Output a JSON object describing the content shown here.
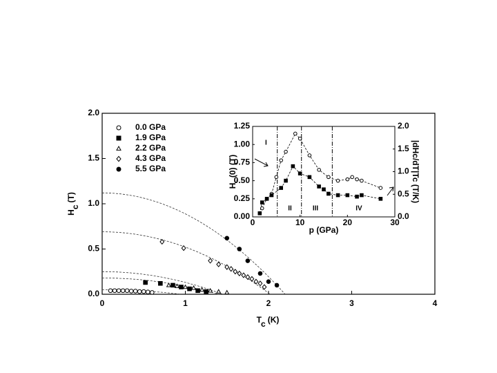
{
  "chart_data": [
    {
      "type": "scatter",
      "ylabel": {
        "main": "H",
        "sub": "c",
        "unit": "(T)"
      },
      "xlabel": {
        "main": "T",
        "sub": "c",
        "unit": "(K)"
      },
      "xlim": [
        0,
        4
      ],
      "xticks": [
        0,
        1,
        2,
        3,
        4
      ],
      "ylim": [
        0,
        2
      ],
      "yticks": [
        {
          "value": 0,
          "label": "0.0"
        },
        {
          "value": 0.5,
          "label": "0.5"
        },
        {
          "value": 1,
          "label": "1.0"
        },
        {
          "value": 1.5,
          "label": "1.5"
        },
        {
          "value": 2,
          "label": "2.0"
        }
      ],
      "series": [
        {
          "name": "0.0 GPa",
          "marker": "circle-open",
          "color": "#000000",
          "x": [
            0.1,
            0.15,
            0.2,
            0.25,
            0.3,
            0.35,
            0.4,
            0.45,
            0.5,
            0.55,
            0.6
          ],
          "values": [
            0.04,
            0.04,
            0.04,
            0.04,
            0.04,
            0.035,
            0.035,
            0.03,
            0.03,
            0.025,
            0.02
          ],
          "fit": {
            "h0": 0.05,
            "tc": 0.95
          }
        },
        {
          "name": "1.9 GPa",
          "marker": "square-filled",
          "color": "#000000",
          "x": [
            0.52,
            0.7,
            0.85,
            0.95,
            1.05,
            1.15,
            1.25
          ],
          "values": [
            0.13,
            0.12,
            0.1,
            0.08,
            0.06,
            0.04,
            0.03
          ],
          "fit": {
            "h0": 0.18,
            "tc": 1.4
          }
        },
        {
          "name": "2.2 GPa",
          "marker": "triangle-open",
          "color": "#000000",
          "x": [
            0.8,
            0.9,
            1.0,
            1.1,
            1.2,
            1.3,
            1.4,
            1.5
          ],
          "values": [
            0.1,
            0.09,
            0.08,
            0.07,
            0.05,
            0.04,
            0.03,
            0.02
          ],
          "fit": {
            "h0": 0.25,
            "tc": 1.45
          }
        },
        {
          "name": "4.3 GPa",
          "marker": "diamond-open",
          "color": "#000000",
          "x": [
            0.72,
            0.98,
            1.3,
            1.4,
            1.5,
            1.55,
            1.6,
            1.65,
            1.7,
            1.75,
            1.8,
            1.85,
            1.9,
            1.95
          ],
          "values": [
            0.58,
            0.51,
            0.37,
            0.33,
            0.3,
            0.28,
            0.25,
            0.23,
            0.21,
            0.19,
            0.17,
            0.14,
            0.12,
            0.08
          ],
          "fit": {
            "h0": 0.69,
            "tc": 2.02
          }
        },
        {
          "name": "5.5 GPa",
          "marker": "circle-filled",
          "color": "#000000",
          "x": [
            1.5,
            1.65,
            1.75,
            1.9,
            2.0,
            2.1
          ],
          "values": [
            0.62,
            0.5,
            0.37,
            0.23,
            0.14,
            0.1
          ],
          "fit": {
            "h0": 1.12,
            "tc": 2.2
          }
        }
      ]
    },
    {
      "type": "line",
      "xlabel": "p (GPa)",
      "ylabel": {
        "main": "H",
        "sub": "c",
        "unit": "(0) (T)"
      },
      "y2label": "|dHc/dT|Tc (T/K)",
      "xlim": [
        0,
        30
      ],
      "xticks": [
        0,
        10,
        20,
        30
      ],
      "ylim": [
        0,
        1.25
      ],
      "yticks": [
        {
          "value": 0,
          "label": "0.00"
        },
        {
          "value": 0.25,
          "label": "0.25"
        },
        {
          "value": 0.5,
          "label": "0.50"
        },
        {
          "value": 0.75,
          "label": "0.75"
        },
        {
          "value": 1,
          "label": "1.00"
        },
        {
          "value": 1.25,
          "label": "1.25"
        }
      ],
      "y2lim": [
        0,
        2
      ],
      "y2ticks": [
        {
          "value": 0,
          "label": "0.0"
        },
        {
          "value": 0.5,
          "label": "0.5"
        },
        {
          "value": 1,
          "label": "1.0"
        },
        {
          "value": 1.5,
          "label": "1.5"
        },
        {
          "value": 2,
          "label": "2.0"
        }
      ],
      "boundaries": [
        5.2,
        10.3,
        16.8
      ],
      "regions": [
        "I",
        "II",
        "III",
        "IV"
      ],
      "series": [
        {
          "marker": "circle-open",
          "color": "#000000",
          "axis": "y2",
          "x": [
            2,
            3,
            4,
            5,
            6,
            7,
            9,
            10,
            12,
            14,
            16,
            18,
            20,
            21,
            22,
            23,
            27
          ],
          "values": [
            0.19,
            0.4,
            0.51,
            0.88,
            1.25,
            1.44,
            1.84,
            1.73,
            1.36,
            1.04,
            0.88,
            0.8,
            0.83,
            0.88,
            0.83,
            0.8,
            0.64
          ]
        },
        {
          "marker": "square-filled",
          "color": "#000000",
          "x": [
            1.5,
            2,
            3,
            4,
            6,
            7,
            8.5,
            10,
            12,
            14,
            15,
            16,
            18,
            20,
            22,
            23,
            27
          ],
          "values": [
            0.05,
            0.2,
            0.25,
            0.3,
            0.4,
            0.5,
            0.7,
            0.6,
            0.55,
            0.42,
            0.38,
            0.32,
            0.3,
            0.3,
            0.28,
            0.3,
            0.25
          ]
        }
      ]
    }
  ]
}
